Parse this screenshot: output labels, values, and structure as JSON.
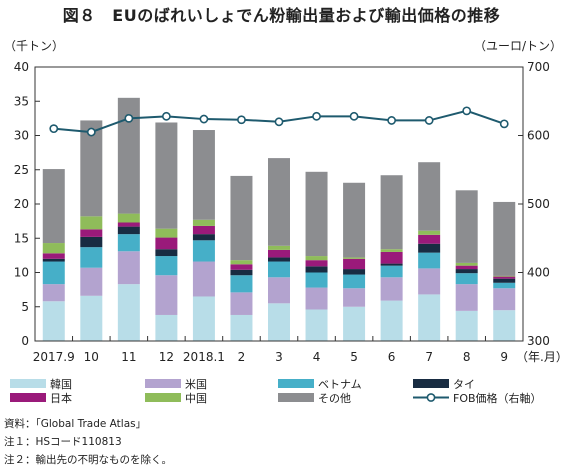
{
  "title": "図８　EUのばれいしょでん粉輸出量および輸出価格の推移",
  "chart_data": {
    "type": "bar",
    "stacked": true,
    "categories": [
      "2017.9",
      "10",
      "11",
      "12",
      "2018.1",
      "2",
      "3",
      "4",
      "5",
      "6",
      "7",
      "8",
      "9"
    ],
    "y_left": {
      "unit": "（千トン）",
      "ylim": [
        0,
        40
      ],
      "ticks": [
        0,
        5,
        10,
        15,
        20,
        25,
        30,
        35,
        40
      ]
    },
    "y_right": {
      "unit": "（ユーロ/トン）",
      "ylim": [
        300,
        700
      ],
      "ticks": [
        300,
        400,
        500,
        600,
        700
      ]
    },
    "x_unit": "（年.月）",
    "grid": false,
    "legend_position": "bottom",
    "series": [
      {
        "name": "韓国",
        "color": "#b8dde8",
        "values": [
          5.8,
          6.6,
          8.3,
          3.8,
          6.5,
          3.8,
          5.5,
          4.6,
          5.0,
          5.9,
          6.8,
          4.4,
          4.5
        ]
      },
      {
        "name": "米国",
        "color": "#b3a3cf",
        "values": [
          2.5,
          4.1,
          4.8,
          5.8,
          5.1,
          3.3,
          3.8,
          3.2,
          2.7,
          3.4,
          3.8,
          3.9,
          3.2
        ]
      },
      {
        "name": "ベトナム",
        "color": "#46afc8",
        "values": [
          3.3,
          3.0,
          2.5,
          2.8,
          3.1,
          2.5,
          2.3,
          2.2,
          2.0,
          1.7,
          2.3,
          1.6,
          0.8
        ]
      },
      {
        "name": "タイ",
        "color": "#182c42",
        "values": [
          0.4,
          1.5,
          1.1,
          1.0,
          0.9,
          0.8,
          0.6,
          0.9,
          0.8,
          0.3,
          1.3,
          0.6,
          0.6
        ]
      },
      {
        "name": "日本",
        "color": "#9a1a7a",
        "values": [
          0.8,
          1.1,
          0.6,
          1.7,
          1.2,
          0.8,
          1.1,
          0.9,
          1.5,
          1.7,
          1.3,
          0.5,
          0.3
        ]
      },
      {
        "name": "中国",
        "color": "#8fbc5a",
        "values": [
          1.5,
          1.9,
          1.3,
          1.3,
          0.9,
          0.6,
          0.6,
          0.6,
          0.2,
          0.4,
          0.6,
          0.4,
          0.1
        ]
      },
      {
        "name": "その他",
        "color": "#8c8d90",
        "values": [
          10.8,
          14.0,
          16.9,
          15.5,
          13.1,
          12.3,
          12.8,
          12.3,
          10.9,
          10.8,
          10.0,
          10.6,
          10.8
        ]
      }
    ],
    "line": {
      "name": "FOB価格（右軸）",
      "color": "#1e5a6e",
      "axis": "right",
      "values": [
        610,
        605,
        625,
        628,
        624,
        623,
        620,
        628,
        628,
        622,
        622,
        636,
        617
      ]
    }
  },
  "notes": [
    "資料：「Global Trade Atlas」",
    "注１：HSコード110813",
    "注２：輸出先の不明なものを除く。"
  ]
}
